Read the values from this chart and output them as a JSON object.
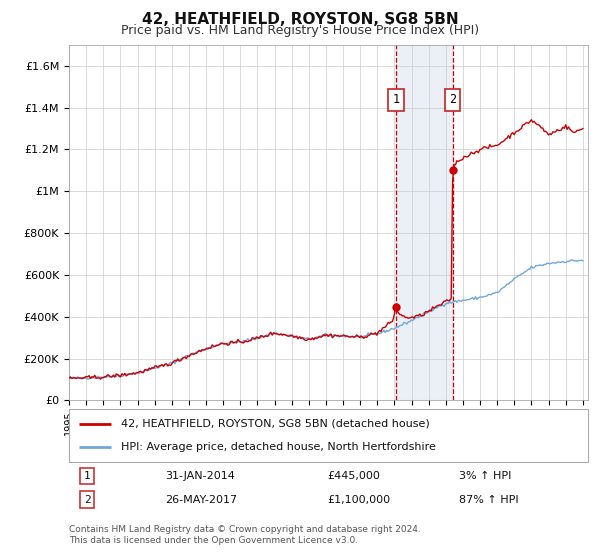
{
  "title": "42, HEATHFIELD, ROYSTON, SG8 5BN",
  "subtitle": "Price paid vs. HM Land Registry's House Price Index (HPI)",
  "ylim": [
    0,
    1700000
  ],
  "yticks": [
    0,
    200000,
    400000,
    600000,
    800000,
    1000000,
    1200000,
    1400000,
    1600000
  ],
  "ytick_labels": [
    "£0",
    "£200K",
    "£400K",
    "£600K",
    "£800K",
    "£1M",
    "£1.2M",
    "£1.4M",
    "£1.6M"
  ],
  "hpi_color": "#6fa8dc",
  "price_color": "#cc0000",
  "sale1_date": 2014.08,
  "sale1_price": 445000,
  "sale2_date": 2017.4,
  "sale2_price": 1100000,
  "legend_entry1": "42, HEATHFIELD, ROYSTON, SG8 5BN (detached house)",
  "legend_entry2": "HPI: Average price, detached house, North Hertfordshire",
  "table_row1": [
    "1",
    "31-JAN-2014",
    "£445,000",
    "3% ↑ HPI"
  ],
  "table_row2": [
    "2",
    "26-MAY-2017",
    "£1,100,000",
    "87% ↑ HPI"
  ],
  "footnote": "Contains HM Land Registry data © Crown copyright and database right 2024.\nThis data is licensed under the Open Government Licence v3.0.",
  "background_color": "#ffffff",
  "grid_color": "#cccccc",
  "shade_color": "#dce6f1",
  "box_edge_color": "#cc3333"
}
